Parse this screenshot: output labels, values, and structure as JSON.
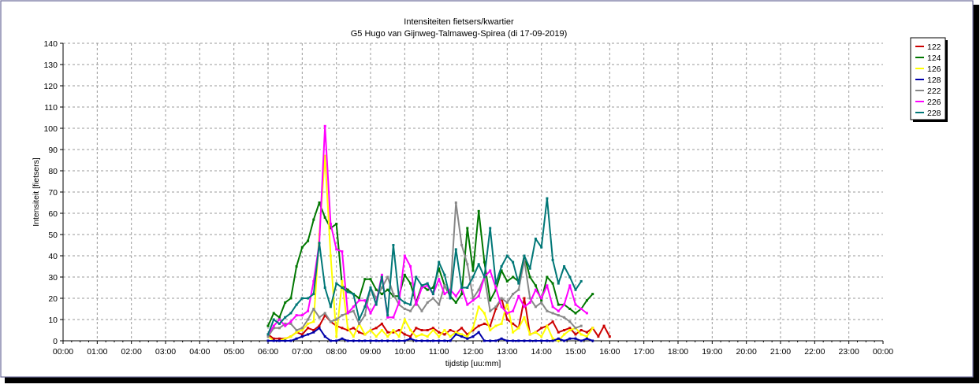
{
  "chart_data": {
    "type": "line",
    "title": "Intensiteiten fietsers/kwartier",
    "subtitle": "G5 Hugo van Gijnweg-Talmaweg-Spirea (di 17-09-2019)",
    "xlabel": "tijdstip [uu:mm]",
    "ylabel": "Intensiteit [fietsers]",
    "xlim": [
      "00:00",
      "24:00"
    ],
    "ylim": [
      0,
      140
    ],
    "x_ticks": [
      "00:00",
      "01:00",
      "02:00",
      "03:00",
      "04:00",
      "05:00",
      "06:00",
      "07:00",
      "08:00",
      "09:00",
      "10:00",
      "11:00",
      "12:00",
      "13:00",
      "14:00",
      "15:00",
      "16:00",
      "17:00",
      "18:00",
      "19:00",
      "20:00",
      "21:00",
      "22:00",
      "23:00",
      "00:00"
    ],
    "y_ticks": [
      0,
      10,
      20,
      30,
      40,
      50,
      60,
      70,
      80,
      90,
      100,
      110,
      120,
      130,
      140
    ],
    "grid": true,
    "legend_position": "right",
    "x_start": "06:00",
    "x_step_minutes": 10,
    "series": [
      {
        "name": "122",
        "color": "#cc0000",
        "values": [
          3,
          1,
          1,
          1,
          2,
          4,
          3,
          6,
          5,
          7,
          12,
          9,
          7,
          6,
          5,
          6,
          4,
          3,
          5,
          6,
          8,
          4,
          4,
          5,
          3,
          2,
          6,
          5,
          5,
          6,
          4,
          3,
          5,
          4,
          6,
          3,
          5,
          7,
          8,
          7,
          15,
          20,
          10,
          8,
          6,
          20,
          3,
          4,
          6,
          7,
          9,
          4,
          5,
          6,
          3,
          5,
          4,
          6,
          2,
          7,
          2
        ]
      },
      {
        "name": "124",
        "color": "#007700",
        "values": [
          7,
          13,
          11,
          18,
          20,
          35,
          44,
          47,
          57,
          65,
          58,
          53,
          55,
          26,
          24,
          22,
          20,
          29,
          29,
          24,
          22,
          24,
          21,
          21,
          31,
          27,
          18,
          26,
          24,
          25,
          34,
          26,
          21,
          18,
          22,
          53,
          33,
          61,
          37,
          19,
          24,
          33,
          28,
          30,
          28,
          40,
          30,
          26,
          19,
          30,
          27,
          17,
          17,
          15,
          13,
          15,
          19,
          22
        ]
      },
      {
        "name": "126",
        "color": "#ffff00",
        "values": [
          2,
          0,
          0,
          1,
          2,
          4,
          5,
          8,
          9,
          50,
          87,
          40,
          2,
          28,
          6,
          2,
          8,
          3,
          5,
          2,
          5,
          2,
          5,
          2,
          10,
          5,
          2,
          3,
          2,
          5,
          2,
          5,
          2,
          4,
          3,
          2,
          6,
          16,
          13,
          5,
          7,
          8,
          18,
          4,
          6,
          11,
          3,
          4,
          2,
          7,
          1,
          0,
          3,
          5,
          6,
          3,
          2,
          6
        ]
      },
      {
        "name": "128",
        "color": "#0000aa",
        "values": [
          0,
          0,
          0,
          0,
          0,
          1,
          2,
          3,
          4,
          6,
          2,
          0,
          0,
          1,
          0,
          0,
          0,
          0,
          0,
          0,
          0,
          0,
          0,
          0,
          0,
          1,
          0,
          0,
          0,
          0,
          0,
          0,
          0,
          3,
          2,
          1,
          2,
          4,
          0,
          0,
          0,
          1,
          0,
          0,
          0,
          0,
          0,
          0,
          0,
          0,
          0,
          1,
          0,
          1,
          1,
          0,
          1,
          0
        ]
      },
      {
        "name": "222",
        "color": "#888888",
        "values": [
          2,
          6,
          6,
          8,
          8,
          5,
          6,
          10,
          15,
          11,
          13,
          9,
          10,
          12,
          13,
          14,
          8,
          12,
          25,
          20,
          25,
          30,
          22,
          17,
          15,
          14,
          18,
          14,
          18,
          20,
          17,
          26,
          22,
          65,
          45,
          36,
          20,
          24,
          30,
          14,
          16,
          20,
          18,
          22,
          24,
          38,
          20,
          16,
          18,
          14,
          13,
          12,
          11,
          9,
          6,
          7
        ]
      },
      {
        "name": "226",
        "color": "#ff00ff",
        "values": [
          3,
          7,
          10,
          7,
          9,
          12,
          12,
          14,
          28,
          46,
          101,
          55,
          43,
          42,
          13,
          16,
          19,
          19,
          13,
          18,
          31,
          11,
          11,
          18,
          40,
          35,
          17,
          25,
          26,
          22,
          29,
          22,
          24,
          21,
          25,
          17,
          19,
          21,
          30,
          33,
          25,
          16,
          13,
          14,
          21,
          16,
          18,
          24,
          20,
          26,
          16,
          14,
          17,
          26,
          17,
          15,
          13
        ]
      },
      {
        "name": "228",
        "color": "#007777",
        "values": [
          3,
          10,
          8,
          11,
          13,
          17,
          20,
          20,
          22,
          46,
          25,
          16,
          27,
          25,
          23,
          22,
          10,
          16,
          25,
          17,
          30,
          12,
          45,
          20,
          18,
          17,
          30,
          26,
          27,
          22,
          37,
          31,
          20,
          43,
          25,
          25,
          30,
          36,
          30,
          53,
          27,
          35,
          40,
          37,
          27,
          40,
          34,
          48,
          44,
          67,
          38,
          27,
          35,
          30,
          24,
          28
        ]
      }
    ]
  },
  "legend_title": "",
  "colors": {
    "axis": "#000000",
    "grid": "#9a9a9a",
    "frame_border": "#333366"
  }
}
